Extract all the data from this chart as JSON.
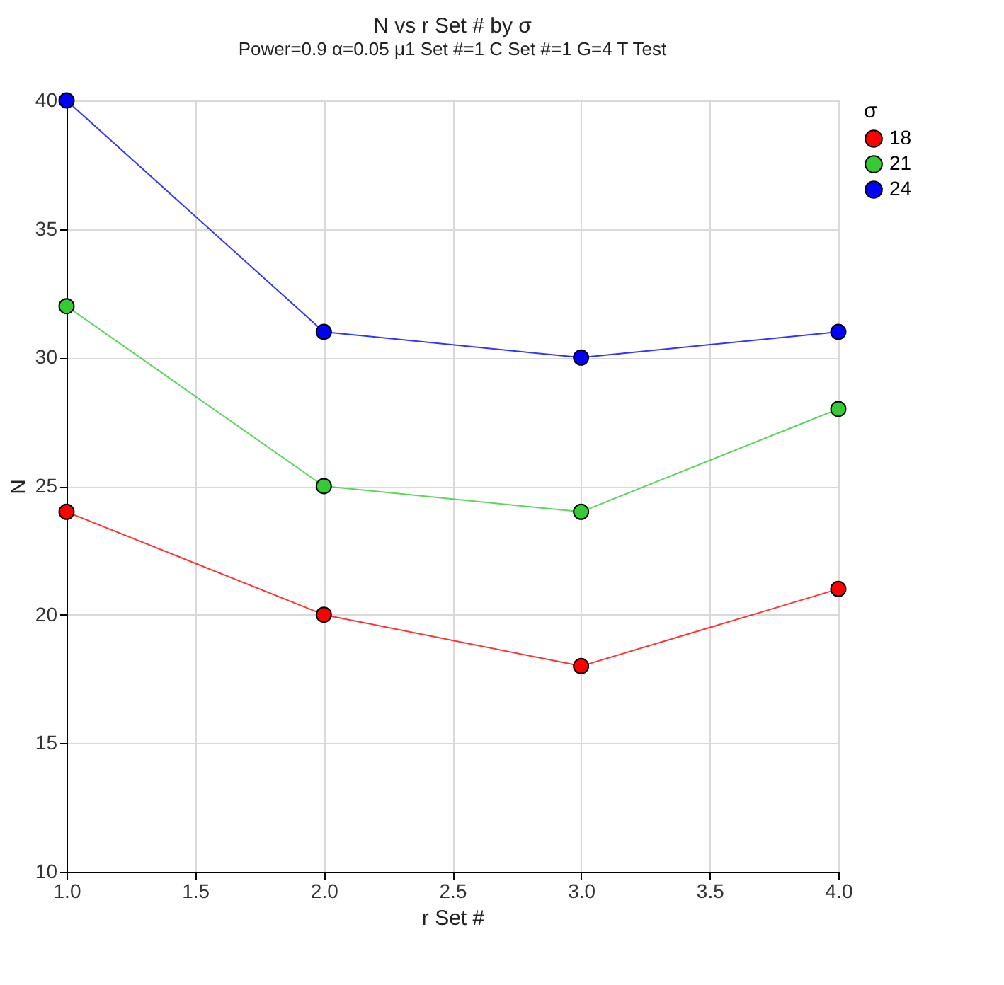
{
  "chart_data": {
    "type": "line",
    "title": "N vs r Set # by σ",
    "subtitle": "Power=0.9 α=0.05 μ1 Set #=1 C Set #=1 G=4 T Test",
    "xlabel": "r Set #",
    "ylabel": "N",
    "legend_title": "σ",
    "x": [
      1,
      2,
      3,
      4
    ],
    "series": [
      {
        "name": "18",
        "color": "#ff0000",
        "values": [
          24,
          20,
          18,
          21
        ]
      },
      {
        "name": "21",
        "color": "#33cc33",
        "values": [
          32,
          25,
          24,
          28
        ]
      },
      {
        "name": "24",
        "color": "#0000ff",
        "values": [
          40,
          31,
          30,
          31
        ]
      }
    ],
    "xlim": [
      1,
      4
    ],
    "xticks": [
      {
        "value": 1,
        "label": "1.0"
      },
      {
        "value": 1.5,
        "label": "1.5"
      },
      {
        "value": 2,
        "label": "2.0"
      },
      {
        "value": 2.5,
        "label": "2.5"
      },
      {
        "value": 3,
        "label": "3.0"
      },
      {
        "value": 3.5,
        "label": "3.5"
      },
      {
        "value": 4,
        "label": "4.0"
      }
    ],
    "ylim": [
      10,
      40
    ],
    "yticks": [
      10,
      15,
      20,
      25,
      30,
      35,
      40
    ],
    "grid": true,
    "legend": "right",
    "marker": "circle",
    "line_style": "solid"
  }
}
